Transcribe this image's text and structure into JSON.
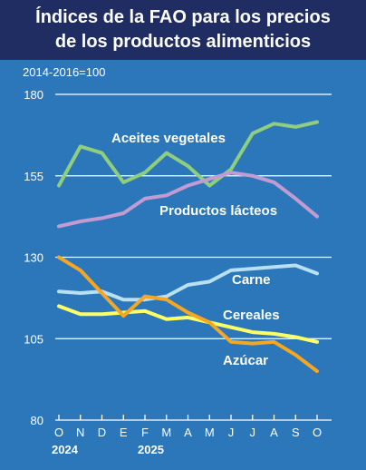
{
  "title_line1": "Índices de la FAO para los precios",
  "title_line2": "de los productos alimenticios",
  "colors": {
    "background": "#2b77b9",
    "title_bar": "#1f2d63",
    "text": "#ffffff",
    "gridline": "#ffffff"
  },
  "chart_data": {
    "type": "line",
    "title": "Índices de la FAO para los precios de los productos alimenticios",
    "units": "2014-2016=100",
    "ylim": [
      80,
      180
    ],
    "yticks": [
      80,
      105,
      130,
      155,
      180
    ],
    "grid": true,
    "x": [
      "O",
      "N",
      "D",
      "E",
      "F",
      "M",
      "A",
      "M",
      "J",
      "J",
      "A",
      "S",
      "O"
    ],
    "year_labels": [
      {
        "label": "2024",
        "at_index": 0
      },
      {
        "label": "2025",
        "at_index": 4
      }
    ],
    "series": [
      {
        "name": "Aceites vegetales",
        "color": "#8fce7e",
        "values": [
          152,
          164,
          162,
          153,
          156,
          162,
          158,
          152,
          157,
          168,
          171,
          170,
          171.5
        ]
      },
      {
        "name": "Productos lácteos",
        "color": "#c39bd3",
        "values": [
          139.5,
          141,
          142,
          143.5,
          148,
          149,
          152,
          154,
          156,
          155,
          153,
          148,
          142.5
        ]
      },
      {
        "name": "Carne",
        "color": "#b9e0f2",
        "values": [
          119.5,
          119,
          119.5,
          117,
          117,
          118,
          121.5,
          122.5,
          126,
          126.5,
          127,
          127.5,
          125
        ]
      },
      {
        "name": "Cereales",
        "color": "#ffff66",
        "values": [
          115,
          112.5,
          112.5,
          113,
          113.5,
          111,
          111.5,
          110,
          108.5,
          107,
          106.5,
          105.5,
          104
        ]
      },
      {
        "name": "Azúcar",
        "color": "#f5a623",
        "values": [
          130,
          126,
          119,
          112,
          118,
          117,
          113,
          110,
          104,
          103.5,
          104,
          100,
          95
        ]
      }
    ]
  }
}
